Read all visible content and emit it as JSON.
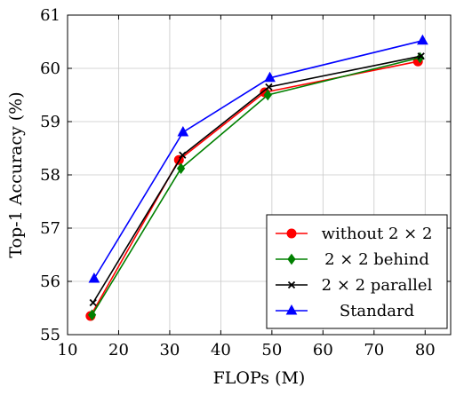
{
  "chart_data": {
    "type": "line",
    "xlabel": "FLOPs (M)",
    "ylabel": "Top-1 Accuracy (%)",
    "xlim": [
      10,
      85
    ],
    "ylim": [
      55,
      61
    ],
    "xticks": [
      10,
      20,
      30,
      40,
      50,
      60,
      70,
      80
    ],
    "yticks": [
      55,
      56,
      57,
      58,
      59,
      60,
      61
    ],
    "grid": true,
    "legend_position": "bottom-right",
    "series": [
      {
        "name": "without 2 × 2",
        "color": "#ff0000",
        "marker": "circle",
        "x": [
          14.5,
          31.8,
          48.6,
          78.6
        ],
        "y": [
          55.35,
          58.28,
          59.55,
          60.13
        ]
      },
      {
        "name": "2 × 2 behind",
        "color": "#008000",
        "marker": "diamond",
        "x": [
          14.8,
          32.2,
          49.2,
          79.0
        ],
        "y": [
          55.37,
          58.12,
          59.5,
          60.2
        ]
      },
      {
        "name": "2 × 2 parallel",
        "color": "#000000",
        "marker": "cross",
        "x": [
          15.0,
          32.5,
          49.4,
          79.2
        ],
        "y": [
          55.6,
          58.37,
          59.65,
          60.23
        ]
      },
      {
        "name": "Standard",
        "color": "#0000ff",
        "marker": "triangle",
        "x": [
          15.2,
          32.6,
          49.6,
          79.5
        ],
        "y": [
          56.05,
          58.8,
          59.82,
          60.52
        ]
      }
    ]
  }
}
